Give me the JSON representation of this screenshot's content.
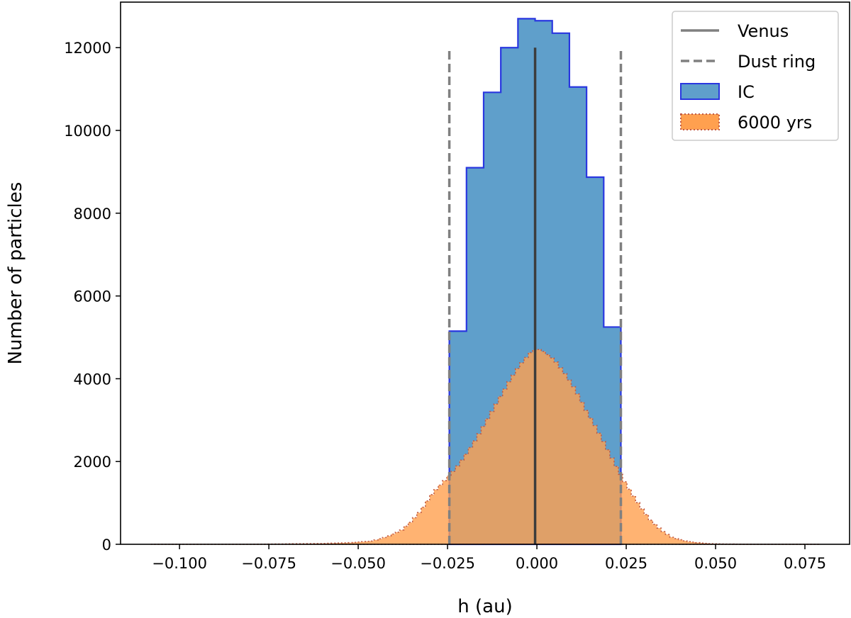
{
  "chart_data": {
    "type": "histogram",
    "xlabel": "h (au)",
    "ylabel": "Number of particles",
    "xlim": [
      -0.1165,
      0.0875
    ],
    "ylim": [
      0,
      13100
    ],
    "x_ticks": [
      -0.1,
      -0.075,
      -0.05,
      -0.025,
      0.0,
      0.025,
      0.05,
      0.075
    ],
    "x_tick_labels": [
      "−0.100",
      "−0.075",
      "−0.050",
      "−0.025",
      "0.000",
      "0.025",
      "0.050",
      "0.075"
    ],
    "y_ticks": [
      0,
      2000,
      4000,
      6000,
      8000,
      10000,
      12000
    ],
    "y_tick_labels": [
      "0",
      "2000",
      "4000",
      "6000",
      "8000",
      "10000",
      "12000"
    ],
    "grid": false,
    "legend_position": "top-right",
    "legend": [
      {
        "label": "Venus",
        "style": "solid-line",
        "color": "#808080"
      },
      {
        "label": "Dust ring",
        "style": "dashed-line",
        "color": "#808080"
      },
      {
        "label": "IC",
        "style": "patch",
        "fill": "#5f9fcb",
        "edge": "#2a37e0"
      },
      {
        "label": "6000 yrs",
        "style": "patch",
        "fill": "#ffa04f",
        "edge": "#c05a45"
      }
    ],
    "venus": {
      "x": -0.0005,
      "y_max": 12000,
      "color": "#3c3c3c"
    },
    "dust_ring": {
      "x": [
        -0.0245,
        0.0235
      ],
      "y_max": 12000,
      "color": "#808080"
    },
    "series": [
      {
        "name": "IC",
        "fill": "#5f9fcb",
        "edge": "#2a37e0",
        "bin_edges": [
          -0.0245,
          -0.0197,
          -0.0149,
          -0.0101,
          -0.0053,
          -0.0005,
          0.0043,
          0.0091,
          0.0139,
          0.0187,
          0.0235
        ],
        "counts": [
          5150,
          9100,
          10920,
          12000,
          12700,
          12650,
          12350,
          11050,
          8870,
          5250
        ]
      },
      {
        "name": "6000 yrs",
        "fill": "#ffa04f",
        "edge": "#c05a45",
        "x": [
          -0.108,
          -0.09,
          -0.08,
          -0.07,
          -0.06,
          -0.052,
          -0.046,
          -0.042,
          -0.038,
          -0.035,
          -0.032,
          -0.029,
          -0.026,
          -0.023,
          -0.02,
          -0.017,
          -0.014,
          -0.011,
          -0.008,
          -0.005,
          -0.002,
          0.0,
          0.002,
          0.005,
          0.008,
          0.011,
          0.014,
          0.017,
          0.02,
          0.023,
          0.026,
          0.029,
          0.032,
          0.035,
          0.038,
          0.042,
          0.046,
          0.05,
          0.06,
          0.07,
          0.079
        ],
        "counts": [
          0,
          0,
          0,
          10,
          20,
          40,
          80,
          180,
          330,
          560,
          870,
          1250,
          1520,
          1800,
          2150,
          2550,
          3000,
          3450,
          3900,
          4300,
          4620,
          4730,
          4650,
          4450,
          4100,
          3700,
          3200,
          2750,
          2250,
          1750,
          1300,
          900,
          560,
          330,
          160,
          70,
          30,
          10,
          0,
          0,
          0
        ]
      }
    ]
  }
}
